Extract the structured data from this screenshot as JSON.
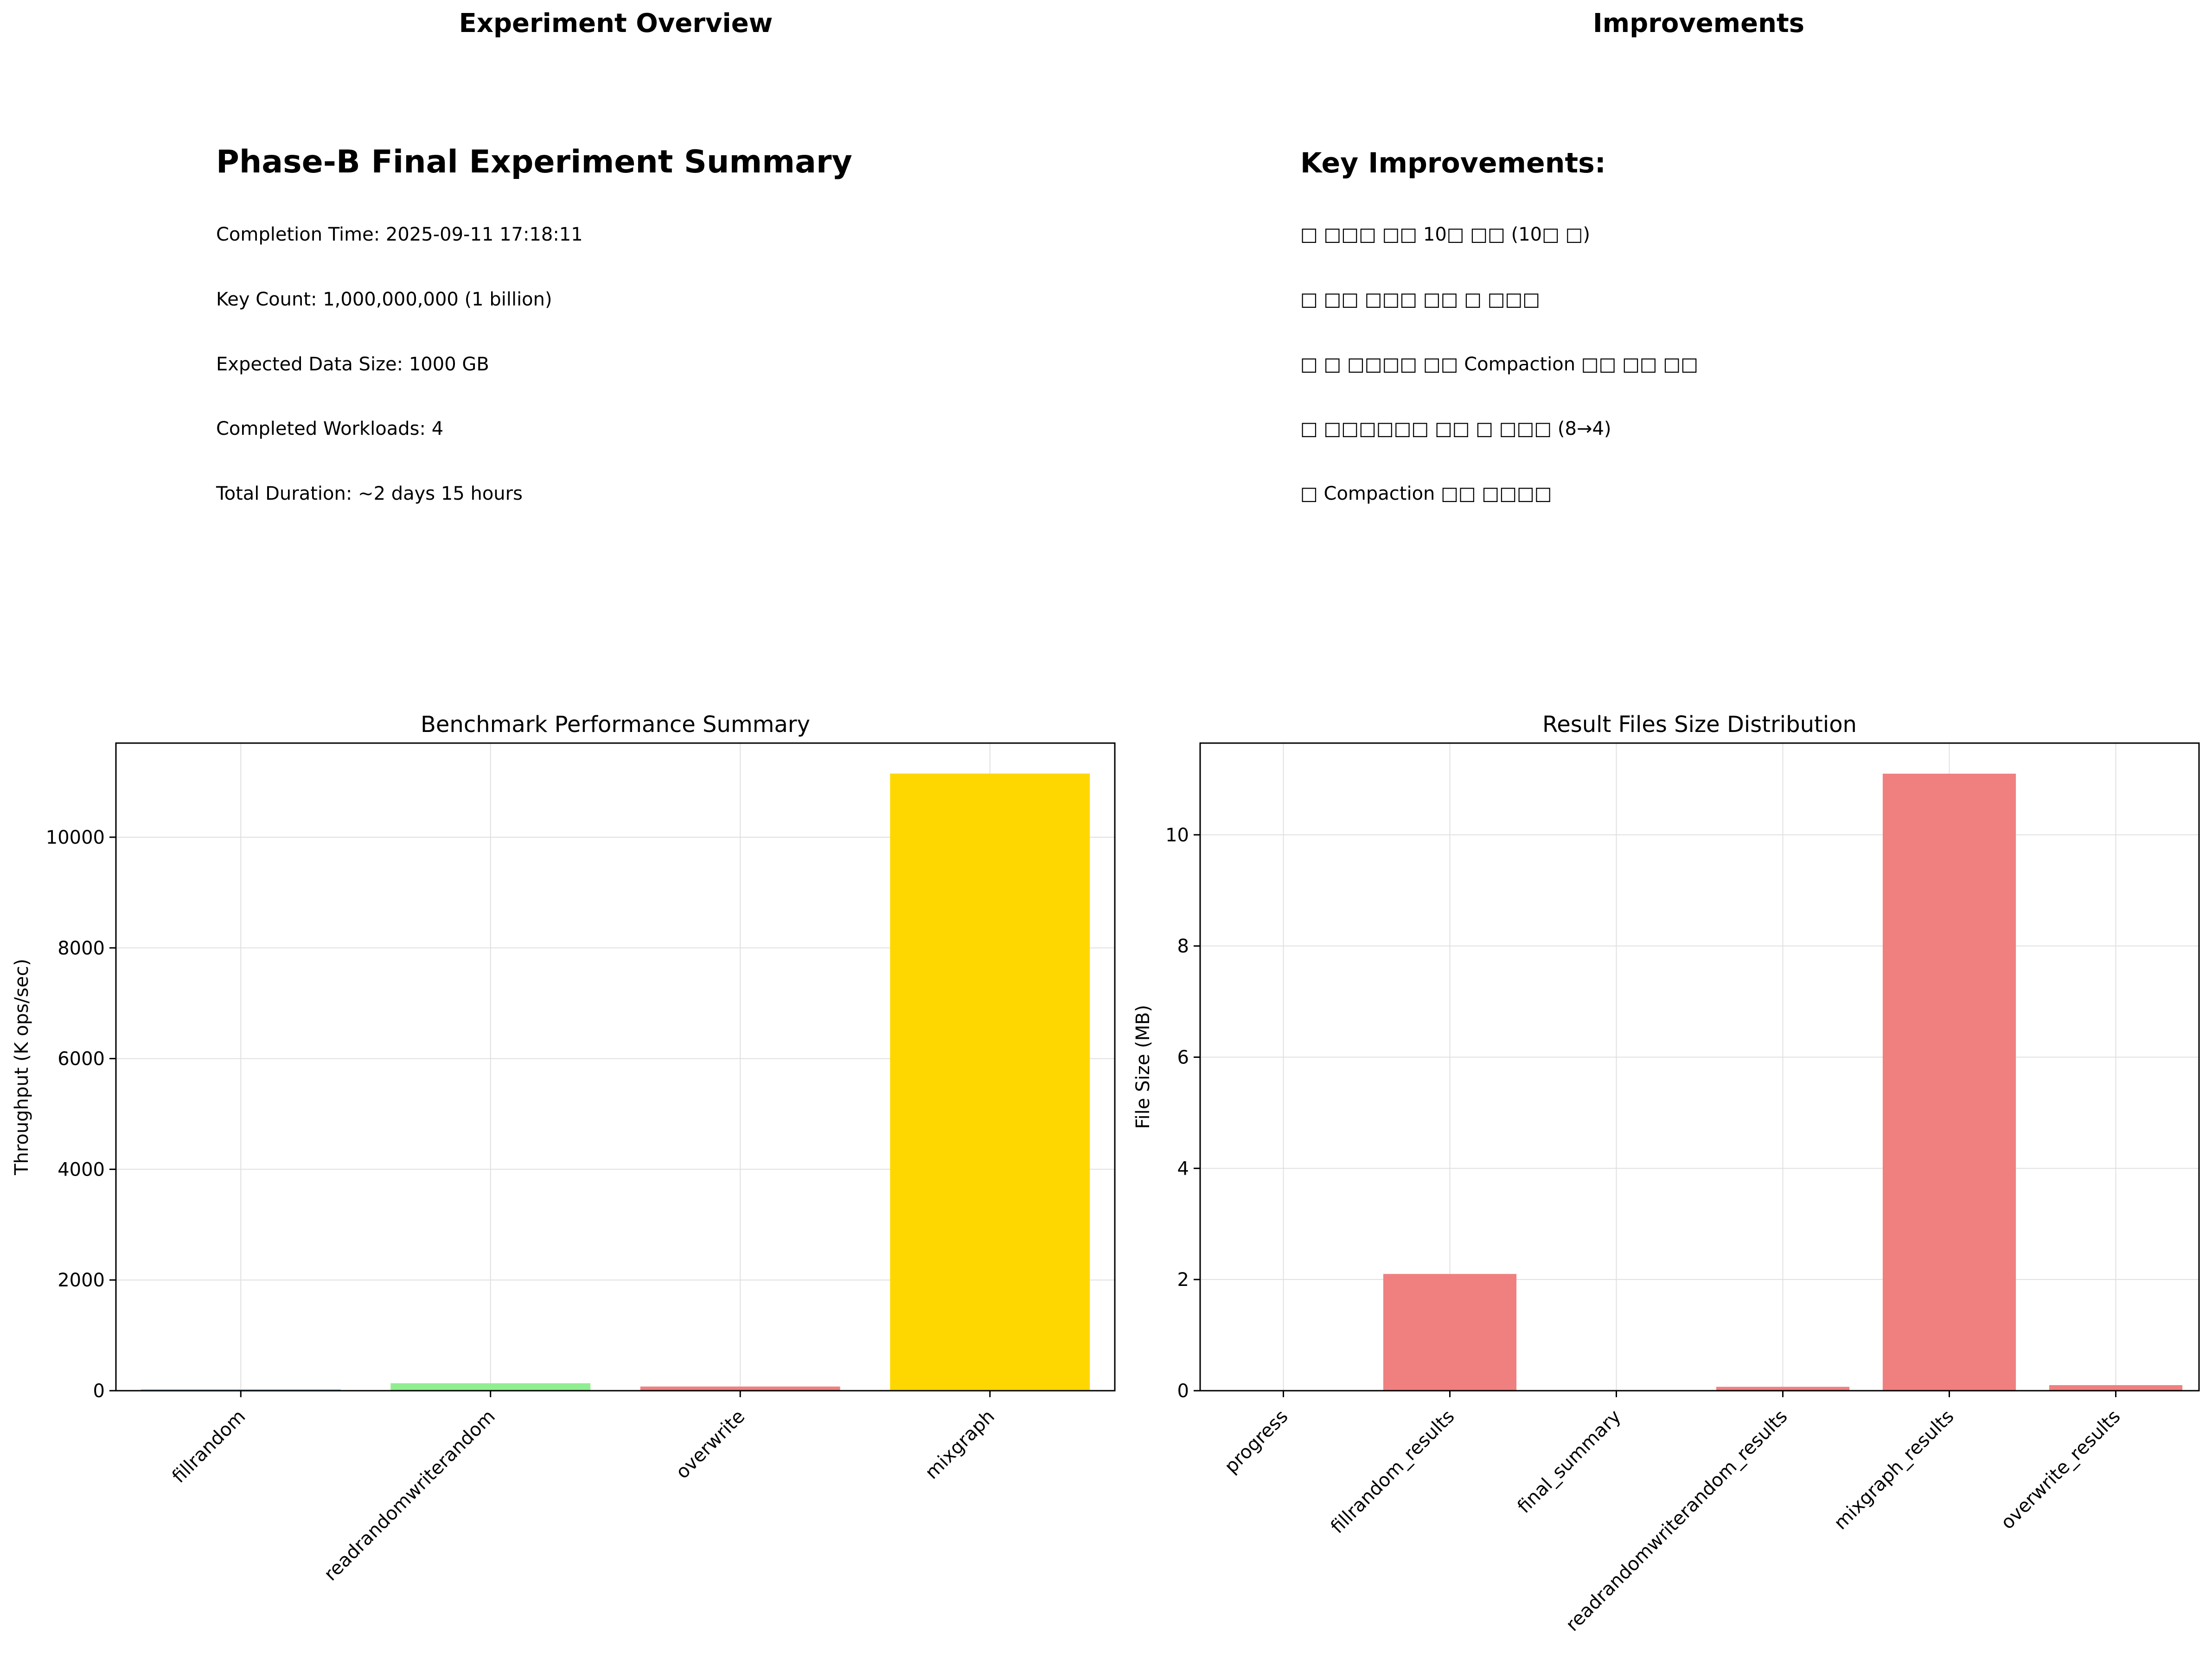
{
  "overview": {
    "panel_title": "Experiment Overview",
    "heading": "Phase-B Final Experiment Summary",
    "lines": [
      "Completion Time: 2025-09-11 17:18:11",
      "Key Count: 1,000,000,000 (1 billion)",
      "Expected Data Size: 1000 GB",
      "Completed Workloads: 4",
      "Total Duration: ~2 days 15 hours"
    ]
  },
  "improvements": {
    "panel_title": "Improvements",
    "heading": "Key Improvements:",
    "lines": [
      "□ □□□ □□ 10□ □□ (10□ □)",
      "□ □□ □□□ □□ □ □□□",
      "□ □ □□□□ □□ Compaction □□ □□ □□",
      "□ □□□□□□ □□ □ □□□ (8→4)",
      "□ Compaction □□ □□□□"
    ]
  },
  "chart_data": [
    {
      "type": "bar",
      "title": "Benchmark Performance Summary",
      "xlabel": "",
      "ylabel": "Throughput (K ops/sec)",
      "categories": [
        "fillrandom",
        "readrandomwriterandom",
        "overwrite",
        "mixgraph"
      ],
      "values": [
        25,
        135,
        75,
        11150
      ],
      "colors": [
        "#87ceeb",
        "#90ee90",
        "#f08080",
        "#ffd700"
      ],
      "ylim": [
        0,
        11700
      ],
      "yticks": [
        0,
        2000,
        4000,
        6000,
        8000,
        10000
      ],
      "grid": true
    },
    {
      "type": "bar",
      "title": "Result Files Size Distribution",
      "xlabel": "",
      "ylabel": "File Size (MB)",
      "categories": [
        "progress",
        "fillrandom_results",
        "final_summary",
        "readrandomwriterandom_results",
        "mixgraph_results",
        "overwrite_results"
      ],
      "values": [
        0,
        2.1,
        0,
        0.07,
        11.1,
        0.1
      ],
      "color": "#f08080",
      "ylim": [
        0,
        11.65
      ],
      "yticks": [
        0,
        2,
        4,
        6,
        8,
        10
      ],
      "grid": true
    }
  ]
}
